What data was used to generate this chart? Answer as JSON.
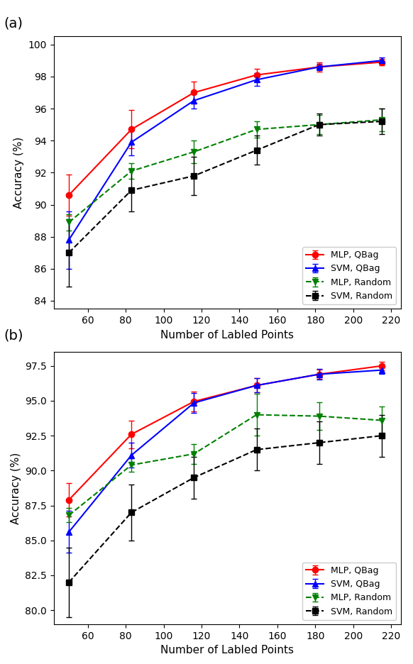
{
  "x": [
    50,
    83,
    116,
    149,
    182,
    215
  ],
  "a_mlp_qbag_y": [
    90.6,
    94.7,
    97.0,
    98.1,
    98.6,
    98.9
  ],
  "a_mlp_qbag_err": [
    1.3,
    1.2,
    0.7,
    0.4,
    0.3,
    0.2
  ],
  "a_svm_qbag_y": [
    87.8,
    93.9,
    96.5,
    97.8,
    98.6,
    99.0
  ],
  "a_svm_qbag_err": [
    1.8,
    0.8,
    0.5,
    0.4,
    0.2,
    0.2
  ],
  "a_mlp_random_y": [
    88.9,
    92.1,
    93.3,
    94.7,
    95.0,
    95.3
  ],
  "a_mlp_random_err": [
    0.5,
    0.5,
    0.7,
    0.5,
    0.6,
    0.7
  ],
  "a_svm_random_y": [
    87.0,
    90.9,
    91.8,
    93.4,
    95.0,
    95.2
  ],
  "a_svm_random_err": [
    2.1,
    1.3,
    1.2,
    0.9,
    0.7,
    0.8
  ],
  "b_mlp_qbag_y": [
    87.9,
    92.6,
    94.95,
    96.1,
    96.9,
    97.5
  ],
  "b_mlp_qbag_err": [
    1.2,
    1.0,
    0.7,
    0.5,
    0.35,
    0.3
  ],
  "b_svm_qbag_y": [
    85.6,
    91.1,
    94.85,
    96.1,
    96.9,
    97.2
  ],
  "b_svm_qbag_err": [
    1.5,
    0.9,
    0.7,
    0.5,
    0.4,
    0.25
  ],
  "b_mlp_random_y": [
    86.8,
    90.4,
    91.2,
    94.0,
    93.9,
    93.6
  ],
  "b_mlp_random_err": [
    0.5,
    0.5,
    0.7,
    1.5,
    1.0,
    1.0
  ],
  "b_svm_random_y": [
    82.0,
    87.0,
    89.5,
    91.5,
    92.0,
    92.5
  ],
  "b_svm_random_err": [
    2.5,
    2.0,
    1.5,
    1.5,
    1.5,
    1.5
  ],
  "color_red": "#FF0000",
  "color_blue": "#0000FF",
  "color_green": "#008000",
  "color_black": "#000000",
  "xlabel": "Number of Labled Points",
  "ylabel": "Accuracy (%)",
  "legend_labels": [
    "MLP, QBag",
    "SVM, QBag",
    "MLP, Random",
    "SVM, Random"
  ],
  "a_ylim": [
    83.5,
    100.5
  ],
  "b_ylim": [
    79.0,
    98.5
  ],
  "a_yticks": [
    84,
    86,
    88,
    90,
    92,
    94,
    96,
    98,
    100
  ],
  "b_yticks": [
    80.0,
    82.5,
    85.0,
    87.5,
    90.0,
    92.5,
    95.0,
    97.5
  ],
  "xticks": [
    60,
    80,
    100,
    120,
    140,
    160,
    180,
    200,
    220
  ]
}
